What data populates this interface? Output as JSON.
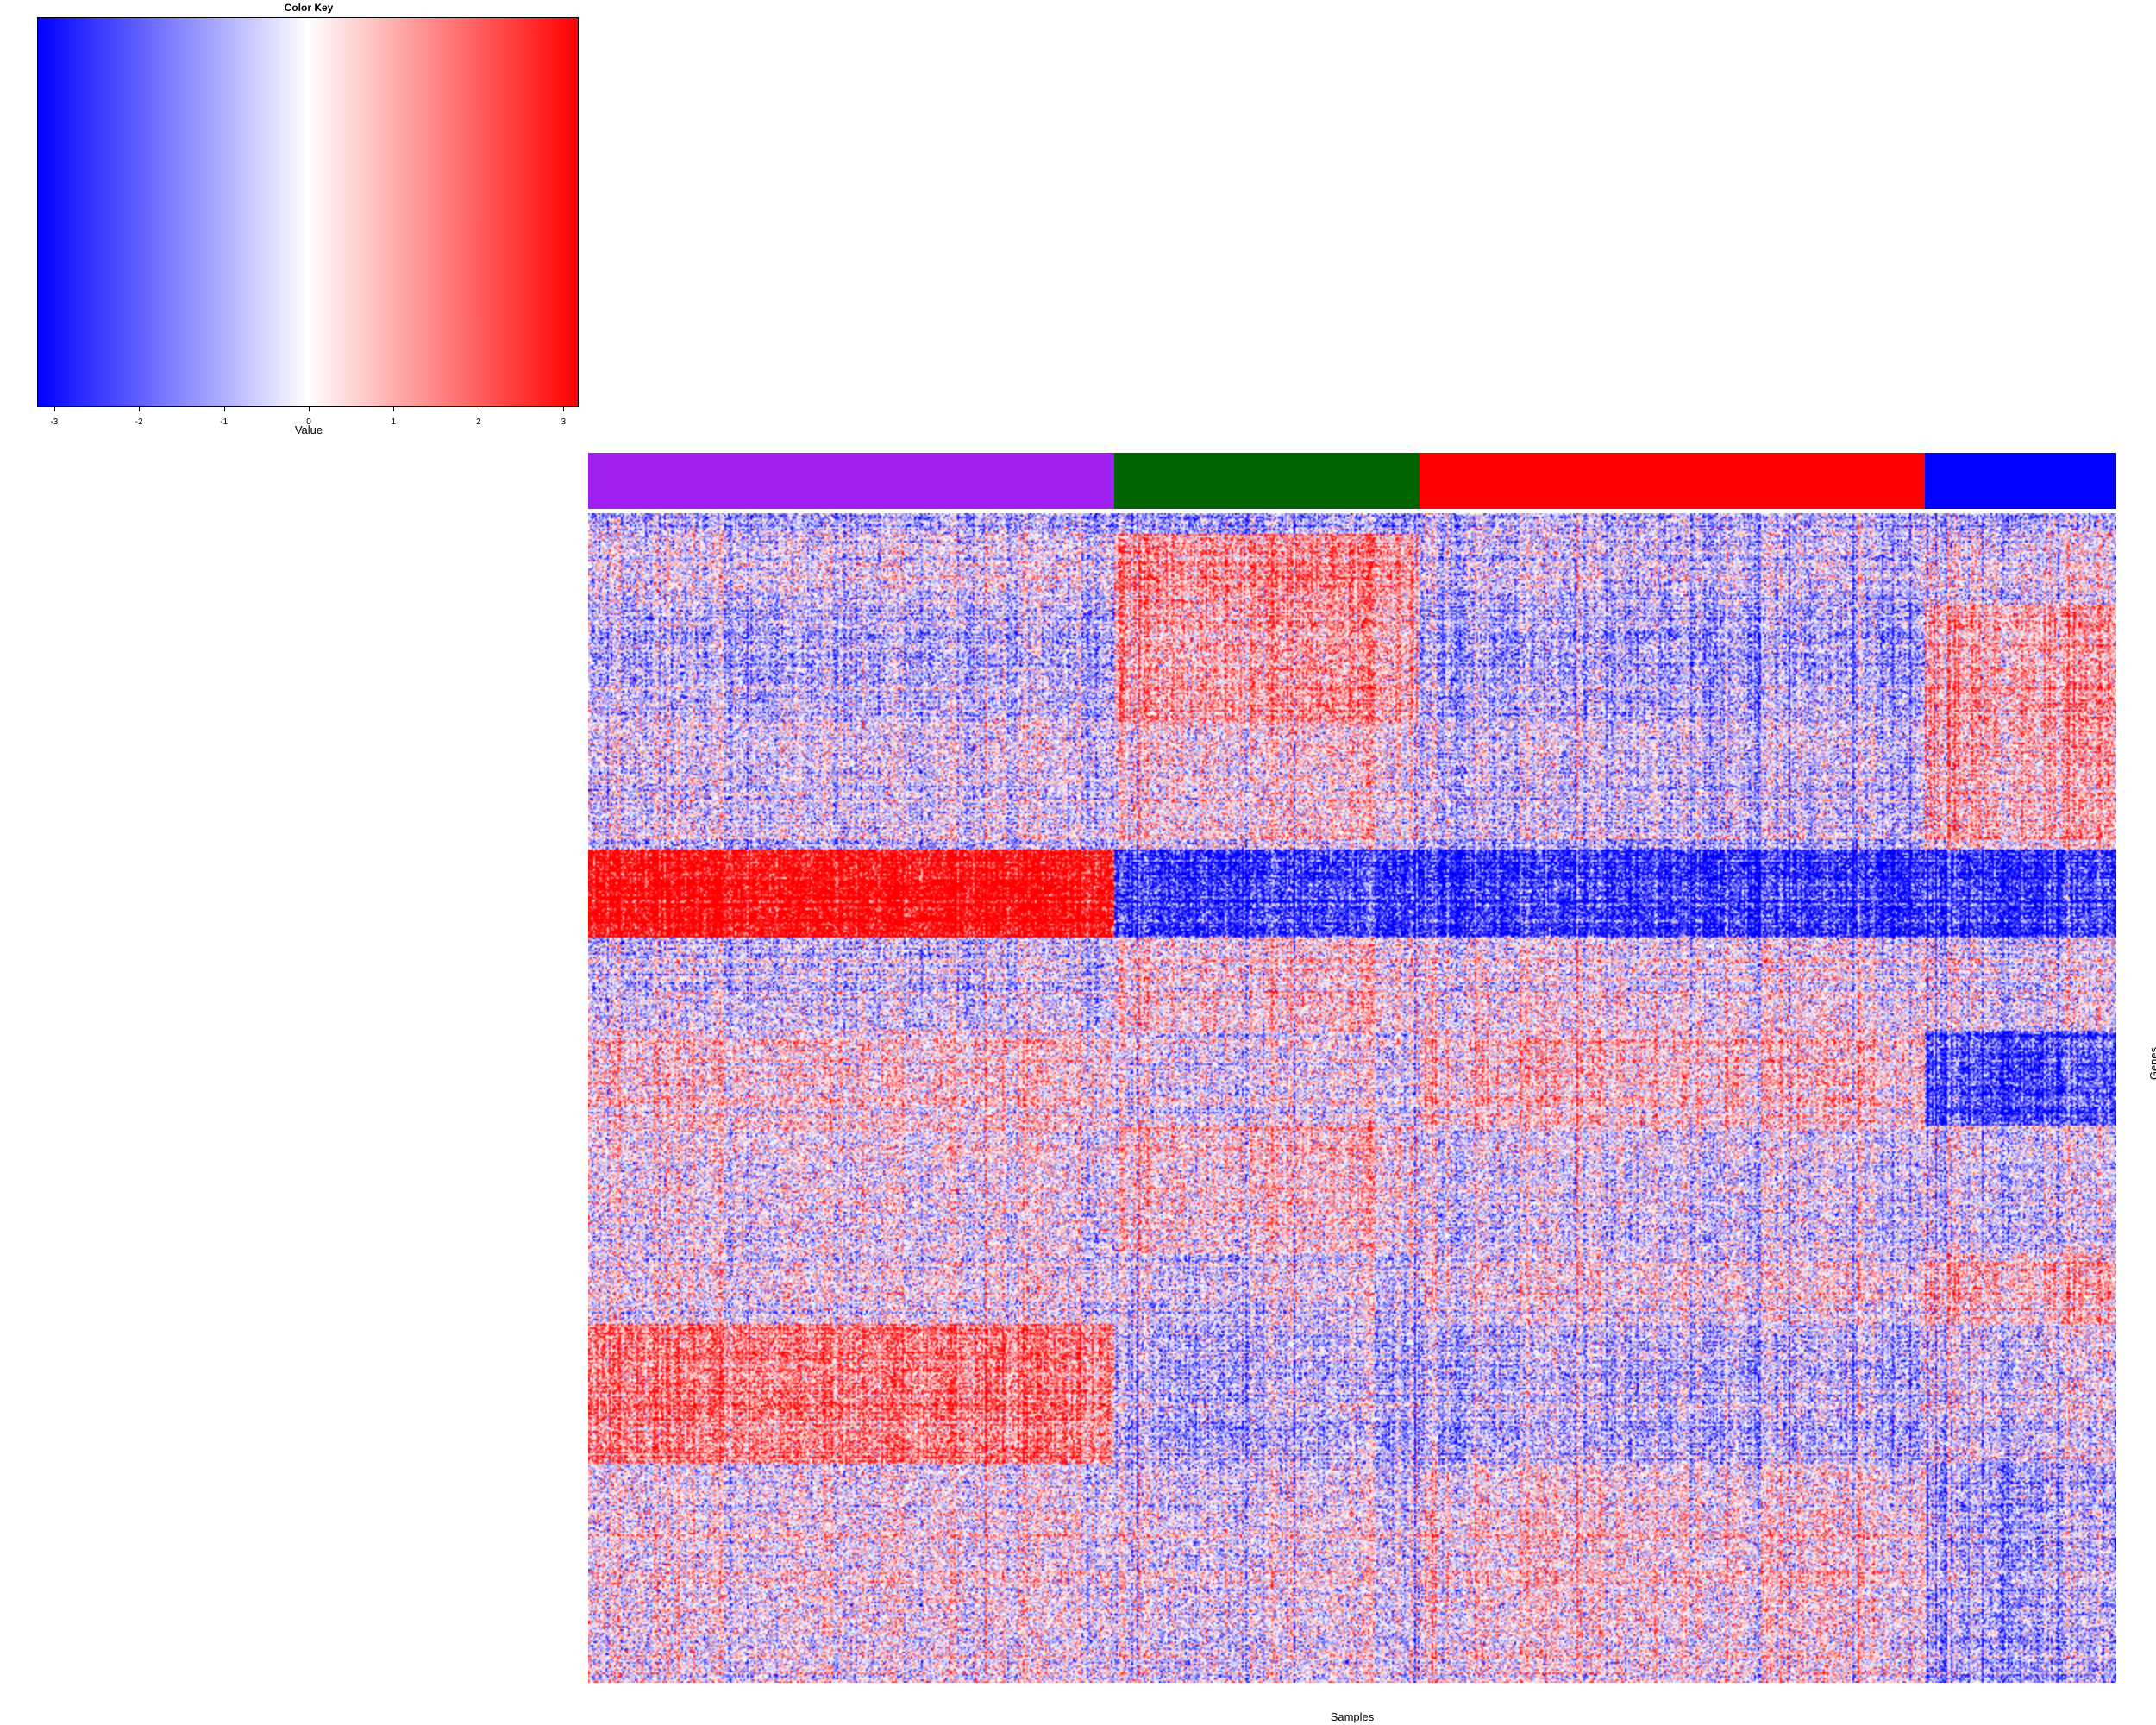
{
  "chart_data": {
    "type": "heatmap",
    "title": "",
    "xlabel": "Samples",
    "ylabel": "Genes",
    "color_key": {
      "title": "Color Key",
      "xlabel": "Value",
      "ticks": [
        "-3",
        "-2",
        "-1",
        "0",
        "1",
        "2",
        "3"
      ],
      "range": [
        -3.2,
        3.2
      ],
      "colors": {
        "low": "#0000ff",
        "mid": "#ffffff",
        "high": "#ff0000"
      }
    },
    "column_groups": [
      {
        "color": "#a020f0",
        "fraction": 0.344
      },
      {
        "color": "#006400",
        "fraction": 0.2
      },
      {
        "color": "#ff0000",
        "fraction": 0.331
      },
      {
        "color": "#0000ff",
        "fraction": 0.125
      }
    ],
    "gene_blocks": [
      {
        "rows": 0.018,
        "bias": [
          -0.6,
          -0.8,
          -0.4,
          -0.6
        ]
      },
      {
        "rows": 0.06,
        "bias": [
          -0.2,
          1.0,
          -0.4,
          -0.1
        ]
      },
      {
        "rows": 0.1,
        "bias": [
          -0.5,
          0.9,
          -0.6,
          0.9
        ]
      },
      {
        "rows": 0.11,
        "bias": [
          -0.2,
          0.2,
          -0.3,
          0.7
        ]
      },
      {
        "rows": 0.075,
        "bias": [
          2.8,
          -2.0,
          -2.0,
          -2.0
        ]
      },
      {
        "rows": 0.08,
        "bias": [
          -0.4,
          0.2,
          0.0,
          -0.2
        ]
      },
      {
        "rows": 0.08,
        "bias": [
          0.3,
          -0.2,
          0.5,
          -1.8
        ]
      },
      {
        "rows": 0.11,
        "bias": [
          0.0,
          0.3,
          -0.2,
          -0.3
        ]
      },
      {
        "rows": 0.06,
        "bias": [
          0.0,
          -0.3,
          0.1,
          0.6
        ]
      },
      {
        "rows": 0.12,
        "bias": [
          1.3,
          -0.6,
          -0.5,
          -0.2
        ]
      },
      {
        "rows": 0.187,
        "bias": [
          0.0,
          -0.2,
          0.2,
          -0.7
        ]
      }
    ]
  }
}
